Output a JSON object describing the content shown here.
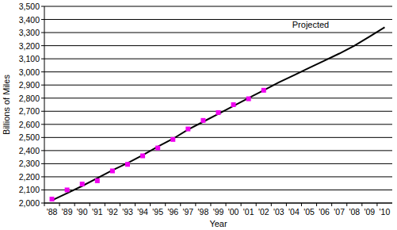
{
  "chart_data": {
    "type": "line",
    "x_label": "Year",
    "y_label": "Billions of Miles",
    "annotation": "Projected",
    "categories": [
      "'88",
      "'89",
      "'90",
      "'91",
      "'92",
      "'93",
      "'94",
      "'95",
      "'96",
      "'97",
      "'98",
      "'99",
      "'00",
      "'01",
      "'02",
      "'03",
      "'04",
      "'05",
      "'06",
      "'07",
      "'08",
      "'09",
      "'10"
    ],
    "series": [
      {
        "type": "scatter",
        "marker": "square",
        "color": "#f000f0",
        "values": [
          2030,
          2100,
          2145,
          2170,
          2245,
          2295,
          2360,
          2420,
          2485,
          2565,
          2630,
          2690,
          2750,
          2795,
          2860,
          null,
          null,
          null,
          null,
          null,
          null,
          null,
          null
        ]
      },
      {
        "type": "line",
        "line_style": "solid",
        "color": "#000000",
        "values": [
          2020,
          2075,
          2130,
          2190,
          2250,
          2305,
          2365,
          2430,
          2490,
          2560,
          2620,
          2680,
          2740,
          2800,
          2860,
          2920,
          2975,
          3030,
          3085,
          3140,
          3200,
          3270,
          3340
        ]
      }
    ],
    "ylim": [
      2000,
      3500
    ],
    "yticks": [
      {
        "value": 2000,
        "label": "2,000"
      },
      {
        "value": 2100,
        "label": "2,100"
      },
      {
        "value": 2200,
        "label": "2,200"
      },
      {
        "value": 2300,
        "label": "2,300"
      },
      {
        "value": 2400,
        "label": "2,400"
      },
      {
        "value": 2500,
        "label": "2,500"
      },
      {
        "value": 2600,
        "label": "2,600"
      },
      {
        "value": 2700,
        "label": "2,700"
      },
      {
        "value": 2800,
        "label": "2,800"
      },
      {
        "value": 2900,
        "label": "2,900"
      },
      {
        "value": 3000,
        "label": "3,000"
      },
      {
        "value": 3100,
        "label": "3,100"
      },
      {
        "value": 3200,
        "label": "3,200"
      },
      {
        "value": 3300,
        "label": "3,300"
      },
      {
        "value": 3400,
        "label": "3,400"
      },
      {
        "value": 3500,
        "label": "3,500"
      }
    ],
    "grid": true
  }
}
